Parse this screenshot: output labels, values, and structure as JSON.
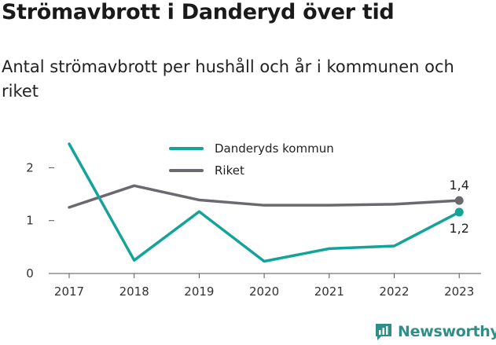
{
  "title": "Strömavbrott i Danderyd över tid",
  "subtitle": "Antal strömavbrott per hushåll och år i kommunen och riket",
  "brand": {
    "name": "Newsworthy",
    "color": "#2f8f88"
  },
  "chart_data": {
    "type": "line",
    "x": [
      "2017",
      "2018",
      "2019",
      "2020",
      "2021",
      "2022",
      "2023"
    ],
    "ylim": [
      0,
      2.5
    ],
    "yticks": [
      "0",
      "1",
      "2"
    ],
    "grid": false,
    "legend_position": "top",
    "series": [
      {
        "name": "Danderyds kommun",
        "color": "#14a398",
        "values": [
          2.45,
          0.25,
          1.17,
          0.23,
          0.47,
          0.52,
          1.16
        ],
        "end_label": "1,2"
      },
      {
        "name": "Riket",
        "color": "#6b696f",
        "values": [
          1.25,
          1.66,
          1.39,
          1.29,
          1.29,
          1.31,
          1.38
        ],
        "end_label": "1,4"
      }
    ]
  }
}
